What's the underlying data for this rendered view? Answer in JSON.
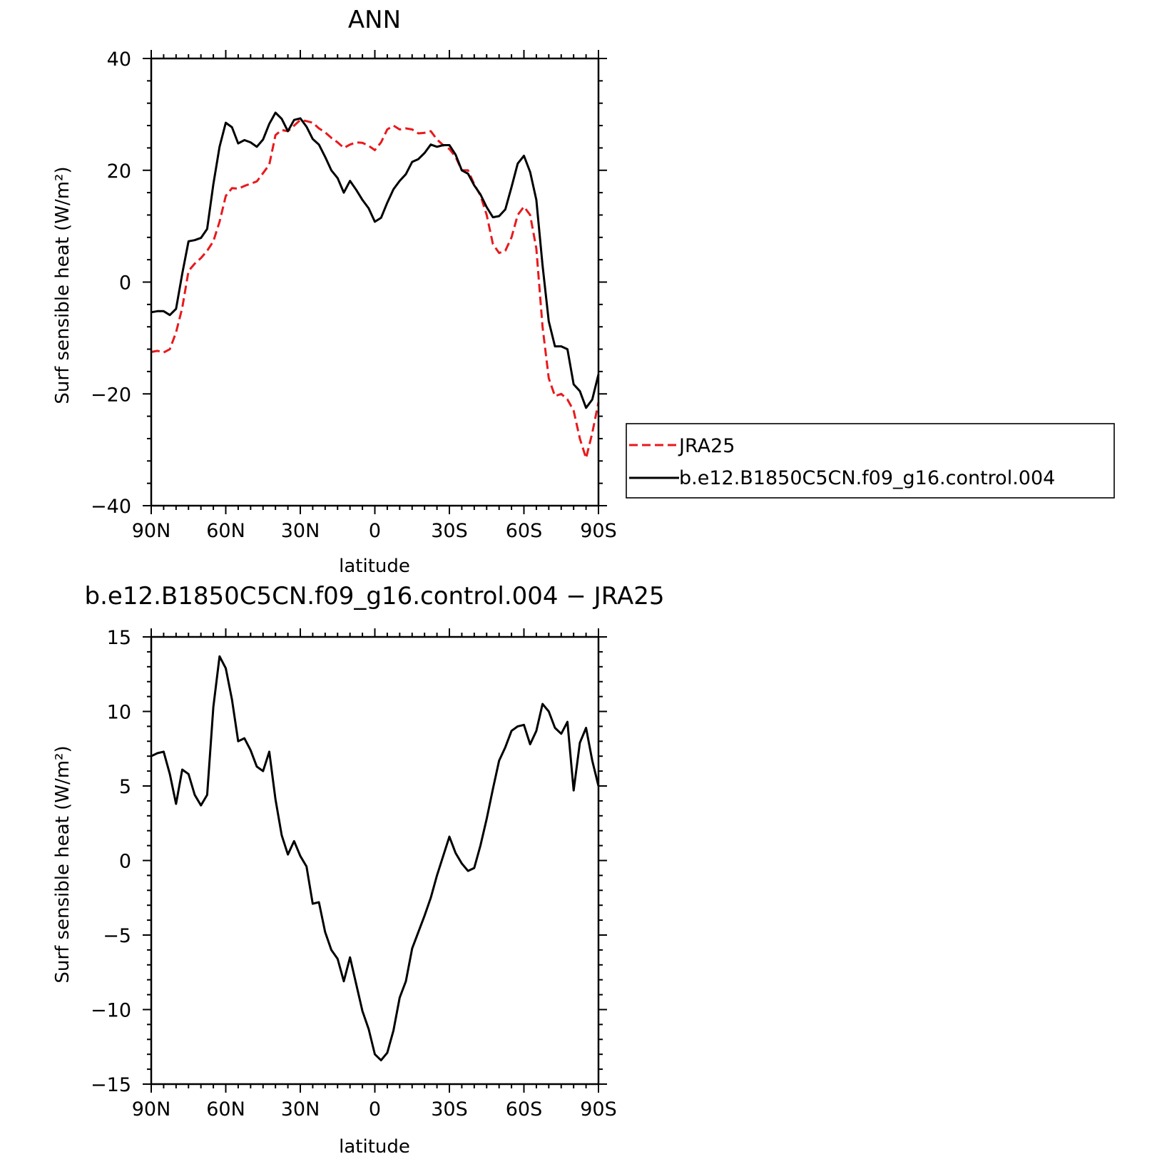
{
  "chart_data": [
    {
      "type": "line",
      "title": "ANN",
      "xlabel": "latitude",
      "ylabel": "Surf sensible heat (W/m²)",
      "xlim": [
        -90,
        90
      ],
      "ylim": [
        -40,
        40
      ],
      "x_tick_labels": [
        "90N",
        "60N",
        "30N",
        "0",
        "30S",
        "60S",
        "90S"
      ],
      "y_tick_labels": [
        "40",
        "20",
        "0",
        "−20",
        "−40"
      ],
      "grid": false,
      "legend_position": "right",
      "series": [
        {
          "name": "JRA25",
          "color": "#e8191c",
          "dash": "dashed",
          "x": [
            -90,
            -87.5,
            -85,
            -82.5,
            -80,
            -77.5,
            -75,
            -72.5,
            -70,
            -67.5,
            -65,
            -62.5,
            -60,
            -57.5,
            -55,
            -52.5,
            -50,
            -47.5,
            -45,
            -42.5,
            -40,
            -37.5,
            -35,
            -32.5,
            -30,
            -27.5,
            -25,
            -22.5,
            -20,
            -17.5,
            -15,
            -12.5,
            -10,
            -7.5,
            -5,
            -2.5,
            0,
            2.5,
            5,
            7.5,
            10,
            12.5,
            15,
            17.5,
            20,
            22.5,
            25,
            27.5,
            30,
            32.5,
            35,
            37.5,
            40,
            42.5,
            45,
            47.5,
            50,
            52.5,
            55,
            57.5,
            60,
            62.5,
            65,
            67.5,
            70,
            72.5,
            75,
            77.5,
            80,
            82.5,
            85,
            87.5,
            90
          ],
          "values": [
            -12.5,
            -12.3,
            -12.6,
            -12.0,
            -9.0,
            -4.6,
            2.0,
            3.3,
            4.3,
            5.6,
            7.3,
            10.8,
            15.4,
            16.8,
            16.7,
            17.2,
            17.6,
            18.0,
            19.5,
            21.0,
            26.3,
            27.2,
            27.0,
            28.0,
            29.0,
            28.8,
            28.5,
            27.5,
            26.8,
            25.8,
            25.0,
            24.0,
            24.6,
            25.0,
            24.9,
            24.4,
            23.6,
            25.0,
            27.3,
            28.0,
            27.3,
            27.5,
            27.3,
            26.6,
            26.7,
            27.0,
            25.5,
            24.5,
            23.8,
            22.4,
            20.0,
            20.0,
            17.5,
            15.5,
            12.0,
            6.8,
            5.2,
            5.6,
            8.0,
            12.0,
            13.5,
            12.0,
            6.0,
            -8.0,
            -17.2,
            -20.4,
            -20.0,
            -21.0,
            -23.0,
            -28.0,
            -31.5,
            -27.0,
            -21.5
          ]
        },
        {
          "name": "b.e12.B1850C5CN.f09_g16.control.004",
          "color": "#000000",
          "dash": "solid",
          "x": [
            -90,
            -87.5,
            -85,
            -82.5,
            -80,
            -77.5,
            -75,
            -72.5,
            -70,
            -67.5,
            -65,
            -62.5,
            -60,
            -57.5,
            -55,
            -52.5,
            -50,
            -47.5,
            -45,
            -42.5,
            -40,
            -37.5,
            -35,
            -32.5,
            -30,
            -27.5,
            -25,
            -22.5,
            -20,
            -17.5,
            -15,
            -12.5,
            -10,
            -7.5,
            -5,
            -2.5,
            0,
            2.5,
            5,
            7.5,
            10,
            12.5,
            15,
            17.5,
            20,
            22.5,
            25,
            27.5,
            30,
            32.5,
            35,
            37.5,
            40,
            42.5,
            45,
            47.5,
            50,
            52.5,
            55,
            57.5,
            60,
            62.5,
            65,
            67.5,
            70,
            72.5,
            75,
            77.5,
            80,
            82.5,
            85,
            87.5,
            90
          ],
          "values": [
            -5.4,
            -5.2,
            -5.2,
            -5.9,
            -4.8,
            1.5,
            7.3,
            7.5,
            7.9,
            9.5,
            17.5,
            24.2,
            28.5,
            27.7,
            24.8,
            25.4,
            25.0,
            24.2,
            25.5,
            28.3,
            30.3,
            29.2,
            27.0,
            29.0,
            29.3,
            27.8,
            25.6,
            24.6,
            22.4,
            20.0,
            18.6,
            16.0,
            18.1,
            16.5,
            14.7,
            13.2,
            10.8,
            11.5,
            14.2,
            16.6,
            18.1,
            19.3,
            21.5,
            22.0,
            23.1,
            24.6,
            24.2,
            24.5,
            24.5,
            22.8,
            20.0,
            19.4,
            17.3,
            15.7,
            13.4,
            11.6,
            11.8,
            13.0,
            17.0,
            21.2,
            22.6,
            19.7,
            14.7,
            3.0,
            -7.0,
            -11.5,
            -11.5,
            -12.0,
            -18.3,
            -19.5,
            -22.5,
            -21.0,
            -16.5
          ]
        }
      ]
    },
    {
      "type": "line",
      "title": "b.e12.B1850C5CN.f09_g16.control.004 − JRA25",
      "xlabel": "latitude",
      "ylabel": "Surf sensible heat (W/m²)",
      "xlim": [
        -90,
        90
      ],
      "ylim": [
        -15,
        15
      ],
      "x_tick_labels": [
        "90N",
        "60N",
        "30N",
        "0",
        "30S",
        "60S",
        "90S"
      ],
      "y_tick_labels": [
        "15",
        "10",
        "5",
        "0",
        "−5",
        "−10",
        "−15"
      ],
      "grid": false,
      "series": [
        {
          "color": "#000000",
          "dash": "solid",
          "x": [
            -90,
            -87.5,
            -85,
            -82.5,
            -80,
            -77.5,
            -75,
            -72.5,
            -70,
            -67.5,
            -65,
            -62.5,
            -60,
            -57.5,
            -55,
            -52.5,
            -50,
            -47.5,
            -45,
            -42.5,
            -40,
            -37.5,
            -35,
            -32.5,
            -30,
            -27.5,
            -25,
            -22.5,
            -20,
            -17.5,
            -15,
            -12.5,
            -10,
            -7.5,
            -5,
            -2.5,
            0,
            2.5,
            5,
            7.5,
            10,
            12.5,
            15,
            17.5,
            20,
            22.5,
            25,
            27.5,
            30,
            32.5,
            35,
            37.5,
            40,
            42.5,
            45,
            47.5,
            50,
            52.5,
            55,
            57.5,
            60,
            62.5,
            65,
            67.5,
            70,
            72.5,
            75,
            77.5,
            80,
            82.5,
            85,
            87.5,
            90
          ],
          "values": [
            7.0,
            7.2,
            7.3,
            5.8,
            3.8,
            6.1,
            5.8,
            4.4,
            3.7,
            4.4,
            10.3,
            13.7,
            12.9,
            10.8,
            8.0,
            8.2,
            7.4,
            6.3,
            6.0,
            7.3,
            4.1,
            1.7,
            0.4,
            1.3,
            0.3,
            -0.4,
            -2.9,
            -2.8,
            -4.8,
            -6.0,
            -6.6,
            -8.1,
            -6.5,
            -8.3,
            -10.1,
            -11.3,
            -13.0,
            -13.4,
            -12.9,
            -11.4,
            -9.2,
            -8.1,
            -5.9,
            -4.8,
            -3.7,
            -2.5,
            -1.0,
            0.3,
            1.6,
            0.5,
            -0.2,
            -0.7,
            -0.5,
            1.0,
            2.8,
            4.8,
            6.7,
            7.6,
            8.7,
            9.0,
            9.1,
            7.8,
            8.7,
            10.5,
            10.0,
            8.9,
            8.5,
            9.3,
            4.7,
            7.9,
            8.9,
            6.7,
            5.0
          ]
        }
      ]
    }
  ]
}
